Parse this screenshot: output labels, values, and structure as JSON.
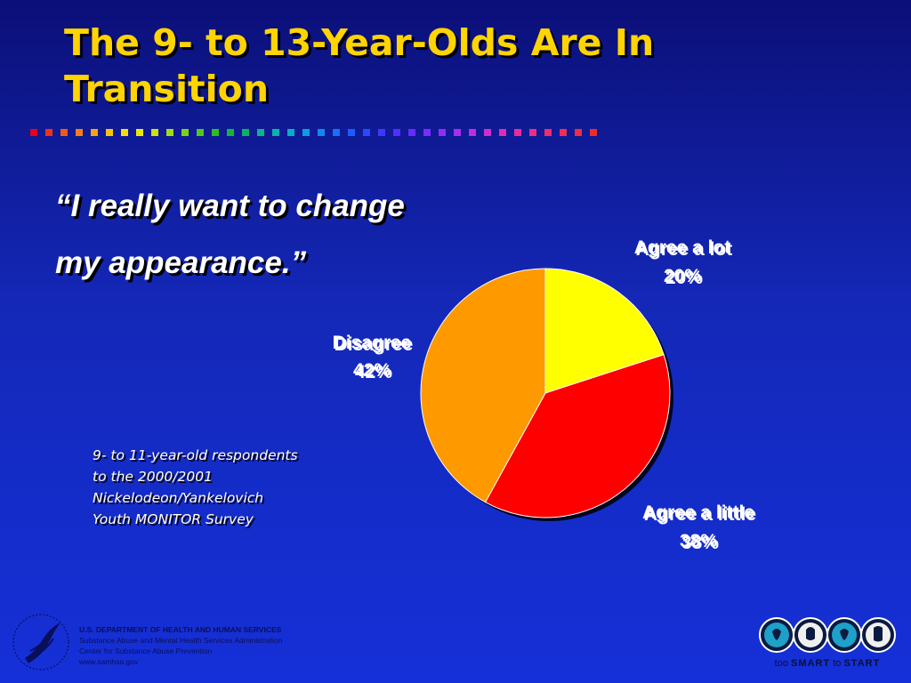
{
  "slide": {
    "title": "The 9- to 13-Year-Olds Are In Transition",
    "quote_line1": "“I really want to change",
    "quote_line2": "my appearance.”",
    "note_lines": [
      "9- to 11-year-old respondents",
      "to the 2000/2001",
      "Nickelodeon/Yankelovich",
      "Youth MONITOR Survey"
    ],
    "title_color": "#ffd400"
  },
  "chart_data": {
    "type": "pie",
    "title": "",
    "slices": [
      {
        "label": "Agree a lot",
        "value": 20,
        "display": "20%",
        "color": "#ffff00"
      },
      {
        "label": "Agree a little",
        "value": 38,
        "display": "38%",
        "color": "#ff0000"
      },
      {
        "label": "Disagree",
        "value": 42,
        "display": "42%",
        "color": "#ff9900"
      }
    ]
  },
  "footer": {
    "dept": "U.S. DEPARTMENT OF HEALTH AND HUMAN SERVICES",
    "line2": "Substance Abuse and Mental Health Services Administration",
    "line3": "Center for Substance Abuse Prevention",
    "line4": "www.samhsa.gov",
    "logo_prefix": "too",
    "logo_smart": "SMART",
    "logo_mid": "to",
    "logo_start": "START"
  },
  "divider_colors": [
    "#e8001c",
    "#f0301a",
    "#f25a18",
    "#f47e14",
    "#f6a410",
    "#f7c40c",
    "#f7dd0a",
    "#e9e80a",
    "#c8e40c",
    "#a2dc10",
    "#7ad214",
    "#50c818",
    "#2ac01e",
    "#10b83a",
    "#0cb460",
    "#0ab486",
    "#0ab4aa",
    "#0aacc8",
    "#0c9ce0",
    "#1088f0",
    "#1670f8",
    "#1c5cff",
    "#2a48ff",
    "#3c38ff",
    "#5030ff",
    "#662cff",
    "#7c2cff",
    "#942cf8",
    "#aa2cee",
    "#c02ce0",
    "#d22ccc",
    "#e02cb4",
    "#e82c9c",
    "#ee2c84",
    "#f02c6c",
    "#f22c54",
    "#f02c40",
    "#ee2c2c"
  ]
}
